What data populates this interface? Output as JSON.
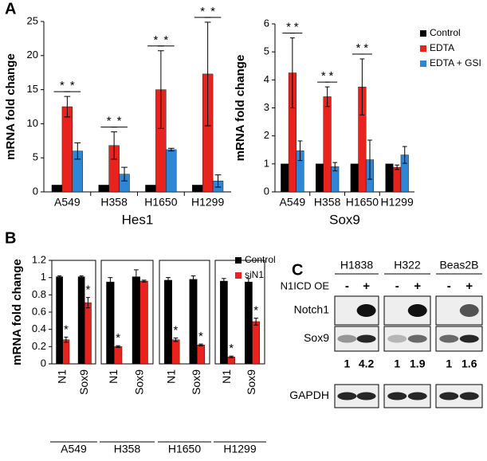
{
  "panel_labels": [
    "A",
    "B",
    "C"
  ],
  "chart_data": [
    {
      "type": "bar",
      "xlabel": "Hes1",
      "ylabel": "mRNA fold change",
      "categories": [
        "A549",
        "H358",
        "H1650",
        "H1299"
      ],
      "series": [
        {
          "name": "Control",
          "color": "#000000",
          "values": [
            1,
            1,
            1,
            1
          ]
        },
        {
          "name": "EDTA",
          "color": "#e8221c",
          "values": [
            12.5,
            6.8,
            15,
            17.3
          ],
          "errors": [
            1.5,
            2,
            5.7,
            7.6
          ]
        },
        {
          "name": "EDTA + GSI",
          "color": "#2f86d4",
          "values": [
            6,
            2.6,
            6.2,
            1.6
          ],
          "errors": [
            1.2,
            1,
            0.2,
            0.9
          ]
        }
      ],
      "annotations": [
        "*",
        "*",
        "*",
        "*",
        "*",
        "*",
        "*",
        "*"
      ],
      "ylim": [
        0,
        25
      ],
      "yticks": [
        0,
        5,
        10,
        15,
        20,
        25
      ]
    },
    {
      "type": "bar",
      "xlabel": "Sox9",
      "ylabel": "mRNA fold change",
      "categories": [
        "A549",
        "H358",
        "H1650",
        "H1299"
      ],
      "series": [
        {
          "name": "Control",
          "color": "#000000",
          "values": [
            1,
            1,
            1,
            1
          ]
        },
        {
          "name": "EDTA",
          "color": "#e8221c",
          "values": [
            4.25,
            3.4,
            3.75,
            0.88
          ],
          "errors": [
            1.25,
            0.35,
            1,
            0.08
          ]
        },
        {
          "name": "EDTA + GSI",
          "color": "#2f86d4",
          "values": [
            1.47,
            0.9,
            1.15,
            1.32
          ],
          "errors": [
            0.35,
            0.15,
            0.7,
            0.3
          ]
        }
      ],
      "annotations": [
        "*",
        "*",
        "*",
        "*",
        "*",
        "*"
      ],
      "ylim": [
        0,
        6
      ],
      "yticks": [
        0,
        1,
        2,
        3,
        4,
        5,
        6
      ],
      "legend": "right"
    },
    {
      "type": "bar",
      "xlabel": "A549",
      "ylabel": "mRNA fold change",
      "categories": [
        "N1",
        "Sox9"
      ],
      "series": [
        {
          "color": "#000000",
          "values": [
            1.01,
            1.01
          ],
          "errors": [
            0.01,
            0.01
          ]
        },
        {
          "color": "#e8221c",
          "values": [
            0.28,
            0.71
          ],
          "errors": [
            0.03,
            0.06
          ],
          "annotations": [
            "*",
            "*"
          ]
        }
      ],
      "ylim": [
        0,
        1.2
      ],
      "yticks": [
        0,
        0.2,
        0.4,
        0.6,
        0.8,
        1,
        1.2
      ]
    },
    {
      "type": "bar",
      "xlabel": "H358",
      "categories": [
        "N1",
        "Sox9"
      ],
      "series": [
        {
          "color": "#000000",
          "values": [
            0.95,
            1.01
          ],
          "errors": [
            0.05,
            0.08
          ]
        },
        {
          "color": "#e8221c",
          "values": [
            0.2,
            0.96
          ],
          "errors": [
            0.01,
            0.01
          ],
          "annotations": [
            "*",
            null
          ]
        }
      ],
      "ylim": [
        0,
        1.2
      ]
    },
    {
      "type": "bar",
      "xlabel": "H1650",
      "categories": [
        "N1",
        "Sox9"
      ],
      "series": [
        {
          "color": "#000000",
          "values": [
            0.97,
            0.98
          ],
          "errors": [
            0.03,
            0.04
          ]
        },
        {
          "color": "#e8221c",
          "values": [
            0.28,
            0.22
          ],
          "errors": [
            0.02,
            0.01
          ],
          "annotations": [
            "*",
            "*"
          ]
        }
      ],
      "ylim": [
        0,
        1.2
      ]
    },
    {
      "type": "bar",
      "xlabel": "H1299",
      "categories": [
        "N1",
        "Sox9"
      ],
      "series": [
        {
          "name": "Control",
          "color": "#000000",
          "values": [
            0.96,
            0.95
          ],
          "errors": [
            0.03,
            0.04
          ]
        },
        {
          "name": "siN1",
          "color": "#e8221c",
          "values": [
            0.08,
            0.49
          ],
          "errors": [
            0.01,
            0.04
          ],
          "annotations": [
            "*",
            "*"
          ]
        }
      ],
      "ylim": [
        0,
        1.2
      ],
      "legend": "upper right"
    }
  ],
  "blot": {
    "cell_lines": [
      "H1838",
      "H322",
      "Beas2B"
    ],
    "condition": "N1ICD OE",
    "lanes": [
      "-",
      "+",
      "-",
      "+",
      "-",
      "+"
    ],
    "rows": [
      "Notch1",
      "Sox9",
      "GAPDH"
    ],
    "quantification": [
      1,
      4.2,
      1,
      1.9,
      1,
      1.6
    ]
  }
}
